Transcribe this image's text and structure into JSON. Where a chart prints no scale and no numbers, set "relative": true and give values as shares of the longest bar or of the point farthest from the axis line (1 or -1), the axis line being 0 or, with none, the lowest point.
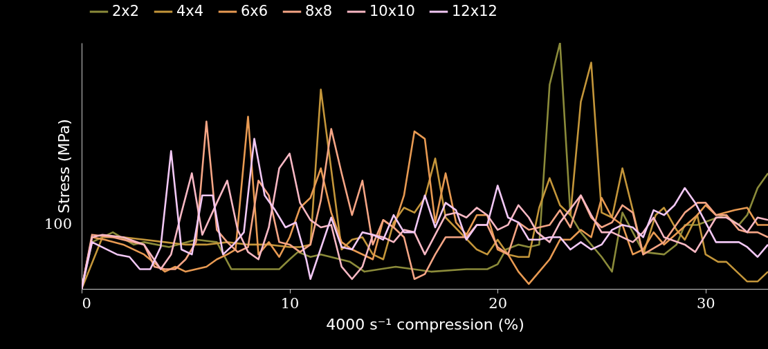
{
  "chart_data": {
    "type": "line",
    "xlabel": "4000 s⁻¹ compression (%)",
    "ylabel": "Stress (MPa)",
    "legend": "top",
    "relative": true,
    "xlim": [
      0,
      33
    ],
    "xticks": [
      0,
      10,
      20,
      30
    ],
    "annotations": [
      "100"
    ],
    "series": [
      {
        "name": "2x2",
        "color": "#8b8b3a",
        "x": [
          0,
          0.5,
          1.5,
          2.5,
          3,
          4.2,
          5.5,
          6.5,
          7.2,
          8,
          9,
          9.5,
          10,
          10.4,
          11,
          11.5,
          12.9,
          13.6,
          15.1,
          16.8,
          18.5,
          19.5,
          20,
          20.4,
          21,
          21.5,
          22,
          22.5,
          23,
          23.5,
          24,
          25,
          25.5,
          26,
          27,
          28,
          28.6,
          29,
          29.6,
          30.9,
          31.6,
          32,
          32.5,
          33
        ],
        "values": [
          0,
          0.19,
          0.23,
          0.18,
          0.19,
          0.17,
          0.2,
          0.19,
          0.08,
          0.08,
          0.08,
          0.08,
          0.12,
          0.15,
          0.13,
          0.14,
          0.11,
          0.07,
          0.09,
          0.07,
          0.08,
          0.08,
          0.1,
          0.16,
          0.18,
          0.17,
          0.18,
          0.83,
          1,
          0.3,
          0.23,
          0.13,
          0.07,
          0.31,
          0.15,
          0.14,
          0.18,
          0.26,
          0.26,
          0.3,
          0.26,
          0.3,
          0.41,
          0.47
        ]
      },
      {
        "name": "4x4",
        "color": "#c4963a",
        "x": [
          0,
          1,
          2,
          3,
          4,
          5,
          6,
          7,
          8,
          9,
          10,
          10.5,
          11,
          11.5,
          12.5,
          13,
          13.5,
          14,
          14.5,
          15,
          15.5,
          16,
          16.5,
          17,
          17.5,
          19,
          19.5,
          20,
          20.5,
          21,
          21.5,
          22,
          22.5,
          23,
          23.5,
          24,
          24.5,
          25,
          25.5,
          26,
          26.5,
          27,
          27.6,
          28,
          28.6,
          29,
          29.6,
          30,
          30.6,
          31,
          32,
          32.5,
          33
        ],
        "values": [
          0,
          0.21,
          0.21,
          0.2,
          0.19,
          0.18,
          0.18,
          0.19,
          0.18,
          0.18,
          0.17,
          0.17,
          0.18,
          0.81,
          0.16,
          0.2,
          0.21,
          0.14,
          0.12,
          0.27,
          0.33,
          0.31,
          0.37,
          0.53,
          0.29,
          0.16,
          0.14,
          0.2,
          0.14,
          0.13,
          0.13,
          0.33,
          0.45,
          0.34,
          0.3,
          0.76,
          0.92,
          0.31,
          0.29,
          0.49,
          0.32,
          0.14,
          0.3,
          0.33,
          0.24,
          0.2,
          0.3,
          0.14,
          0.11,
          0.11,
          0.03,
          0.03,
          0.07
        ]
      },
      {
        "name": "6x6",
        "color": "#e89a52",
        "x": [
          0,
          0.5,
          1.1,
          2,
          3,
          4,
          4.5,
          5,
          6,
          6.5,
          7,
          7.4,
          8,
          8.5,
          9,
          9.5,
          10,
          10.5,
          11,
          11.5,
          12,
          12.5,
          13,
          14,
          14.5,
          15,
          15.5,
          16,
          16.5,
          17,
          17.5,
          18,
          18.5,
          19,
          19.5,
          20,
          20.5,
          21,
          21.5,
          22,
          22.5,
          23,
          23.5,
          24,
          24.5,
          25,
          25.5,
          26,
          26.5,
          27,
          27.5,
          28,
          29.6,
          30,
          30.5,
          31.4,
          32,
          32.5,
          33
        ],
        "values": [
          0,
          0.21,
          0.2,
          0.18,
          0.14,
          0.07,
          0.09,
          0.07,
          0.09,
          0.12,
          0.14,
          0.16,
          0.7,
          0.14,
          0.19,
          0.13,
          0.21,
          0.33,
          0.37,
          0.49,
          0.31,
          0.19,
          0.16,
          0.12,
          0.28,
          0.25,
          0.38,
          0.64,
          0.61,
          0.27,
          0.47,
          0.27,
          0.22,
          0.3,
          0.3,
          0.16,
          0.14,
          0.07,
          0.02,
          0.07,
          0.12,
          0.2,
          0.2,
          0.24,
          0.21,
          0.37,
          0.29,
          0.26,
          0.14,
          0.16,
          0.23,
          0.18,
          0.3,
          0.34,
          0.3,
          0.32,
          0.33,
          0.26,
          0.26
        ]
      },
      {
        "name": "8x8",
        "color": "#f5a585",
        "x": [
          0,
          0.5,
          1.5,
          2.5,
          3,
          3.5,
          4,
          4.5,
          5,
          5.5,
          6,
          6.5,
          7,
          7.5,
          8,
          8.5,
          9,
          9.5,
          10,
          10.5,
          11,
          11.5,
          12,
          12.5,
          13,
          13.5,
          14,
          14.5,
          15,
          15.5,
          16,
          16.5,
          17,
          17.5,
          18,
          18.5,
          19,
          19.5,
          20,
          20.5,
          21,
          21.5,
          22,
          22.5,
          23,
          23.5,
          24,
          24.5,
          25,
          25.5,
          26,
          26.5,
          27,
          28,
          29,
          29.6,
          30,
          30.5,
          31,
          31.6,
          32,
          32.5,
          33
        ],
        "values": [
          0,
          0.22,
          0.21,
          0.19,
          0.18,
          0.09,
          0.08,
          0.08,
          0.12,
          0.19,
          0.68,
          0.24,
          0.19,
          0.15,
          0.17,
          0.44,
          0.38,
          0.19,
          0.18,
          0.15,
          0.18,
          0.36,
          0.65,
          0.47,
          0.3,
          0.44,
          0.18,
          0.28,
          0.25,
          0.21,
          0.04,
          0.06,
          0.14,
          0.21,
          0.21,
          0.21,
          0.26,
          0.26,
          0.17,
          0.14,
          0.27,
          0.24,
          0.25,
          0.26,
          0.32,
          0.25,
          0.38,
          0.29,
          0.25,
          0.27,
          0.34,
          0.31,
          0.14,
          0.19,
          0.31,
          0.35,
          0.35,
          0.3,
          0.3,
          0.24,
          0.23,
          0.23,
          0.21
        ]
      },
      {
        "name": "10x10",
        "color": "#f8b8c4",
        "x": [
          0,
          0.5,
          1,
          2,
          3,
          3.8,
          4.3,
          4.8,
          5.3,
          5.8,
          6.5,
          7,
          7.5,
          8,
          8.5,
          9,
          9.5,
          10,
          10.5,
          11,
          11.5,
          12,
          12.5,
          13,
          13.5,
          14,
          14.5,
          15,
          15.5,
          16,
          16.5,
          17,
          17.5,
          18,
          18.5,
          19,
          19.5,
          20,
          20.5,
          21,
          21.5,
          21.9,
          22.5,
          23,
          24,
          24.5,
          25,
          25.5,
          26.5,
          27,
          27.5,
          28,
          29,
          29.5,
          30.5,
          31,
          31.6,
          32,
          32.5,
          33
        ],
        "values": [
          0,
          0.21,
          0.22,
          0.21,
          0.18,
          0.08,
          0.14,
          0.31,
          0.47,
          0.22,
          0.35,
          0.44,
          0.24,
          0.15,
          0.12,
          0.25,
          0.49,
          0.55,
          0.35,
          0.28,
          0.25,
          0.26,
          0.09,
          0.04,
          0.09,
          0.22,
          0.21,
          0.19,
          0.24,
          0.23,
          0.14,
          0.22,
          0.3,
          0.31,
          0.29,
          0.33,
          0.3,
          0.24,
          0.26,
          0.34,
          0.29,
          0.23,
          0.19,
          0.27,
          0.38,
          0.3,
          0.23,
          0.23,
          0.19,
          0.23,
          0.29,
          0.21,
          0.18,
          0.15,
          0.29,
          0.29,
          0.26,
          0.23,
          0.29,
          0.28
        ]
      },
      {
        "name": "12x12",
        "color": "#f2c8f5",
        "x": [
          0,
          0.5,
          1.7,
          2.3,
          2.8,
          3.3,
          3.8,
          4.3,
          4.8,
          5.3,
          5.8,
          6.3,
          6.8,
          7.3,
          7.8,
          8.3,
          8.8,
          9.3,
          9.8,
          10.3,
          10.8,
          11,
          12,
          12.5,
          13,
          13.5,
          14,
          14.5,
          15,
          15.5,
          16,
          16.5,
          17,
          17.5,
          18,
          18.5,
          19,
          19.5,
          20,
          20.5,
          21,
          21.5,
          22,
          22.5,
          23,
          23.5,
          24,
          24.5,
          25,
          25.5,
          26,
          26.5,
          27,
          27.5,
          28,
          28.5,
          29,
          29.5,
          30,
          30.5,
          31,
          31.6,
          32,
          32.5,
          33
        ],
        "values": [
          0,
          0.19,
          0.14,
          0.13,
          0.08,
          0.08,
          0.17,
          0.56,
          0.16,
          0.14,
          0.38,
          0.38,
          0.14,
          0.18,
          0.23,
          0.61,
          0.38,
          0.32,
          0.25,
          0.27,
          0.12,
          0.04,
          0.29,
          0.17,
          0.16,
          0.23,
          0.22,
          0.2,
          0.3,
          0.23,
          0.23,
          0.38,
          0.25,
          0.35,
          0.32,
          0.2,
          0.26,
          0.26,
          0.42,
          0.29,
          0.27,
          0.2,
          0.2,
          0.21,
          0.21,
          0.16,
          0.19,
          0.16,
          0.18,
          0.24,
          0.26,
          0.25,
          0.21,
          0.32,
          0.3,
          0.34,
          0.41,
          0.35,
          0.27,
          0.19,
          0.19,
          0.19,
          0.17,
          0.13,
          0.18
        ]
      }
    ]
  }
}
